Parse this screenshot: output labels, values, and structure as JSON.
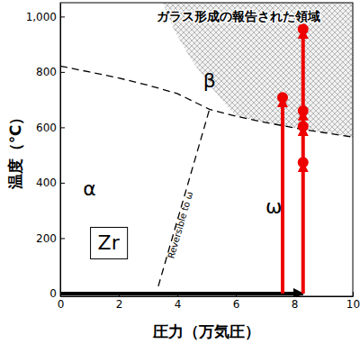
{
  "chart_data": {
    "type": "line",
    "x_label": "圧力（万気圧）",
    "y_label": "温度（℃）",
    "xlim": [
      0,
      10
    ],
    "ylim": [
      -10,
      1050
    ],
    "xticks": [
      0,
      2,
      4,
      6,
      8,
      10
    ],
    "yticks": [
      0,
      200,
      400,
      600,
      800,
      {
        "value": 1000,
        "label": "1,000"
      }
    ],
    "series": [
      {
        "type": "line",
        "color": "#000000",
        "line_style": "dashed",
        "x": [
          0,
          1,
          2,
          3,
          4,
          5.1,
          6,
          7,
          8,
          9,
          10
        ],
        "values": [
          821,
          800,
          778,
          752,
          722,
          665,
          640,
          618,
          598,
          581,
          565
        ]
      },
      {
        "type": "line",
        "color": "#000000",
        "line_style": "dashed",
        "x": [
          3.35,
          5.1
        ],
        "values": [
          26,
          665
        ]
      },
      {
        "type": "area",
        "color": "#aaaaaa",
        "x": [
          3.5,
          3.9,
          4.5,
          5.2,
          6,
          7,
          8,
          9,
          10,
          10
        ],
        "values": [
          1050,
          950,
          840,
          740,
          640,
          618,
          598,
          581,
          565,
          1050
        ]
      },
      {
        "type": "arrow",
        "color": "#000000",
        "x": [
          0,
          8.3
        ],
        "values": [
          0,
          0
        ]
      },
      {
        "type": "arrow",
        "color": "#ee0000",
        "x": [
          7.6,
          7.6
        ],
        "values": [
          0,
          708
        ]
      },
      {
        "type": "arrow",
        "color": "#ee0000",
        "x": [
          8.3,
          8.3,
          8.3,
          8.3,
          8.3
        ],
        "values": [
          0,
          474,
          604,
          660,
          955
        ]
      },
      {
        "type": "scatter",
        "color": "#ee0000",
        "marker": "circle",
        "x": [
          7.6,
          8.3,
          8.3,
          8.3,
          8.3
        ],
        "values": [
          708,
          474,
          604,
          660,
          955
        ]
      }
    ],
    "annotations": [
      {
        "text": "ガラス形成の報告された領域",
        "x": 6.1,
        "y": 1000
      },
      {
        "text": "β",
        "x": 5.1,
        "y": 770
      },
      {
        "text": "α",
        "x": 1.0,
        "y": 377
      },
      {
        "text": "ω",
        "x": 7.3,
        "y": 312
      },
      {
        "text": "Zr",
        "x": 1.65,
        "y": 182
      },
      {
        "text": "Reversible to ω",
        "x": 4.1,
        "y": 247
      }
    ]
  }
}
